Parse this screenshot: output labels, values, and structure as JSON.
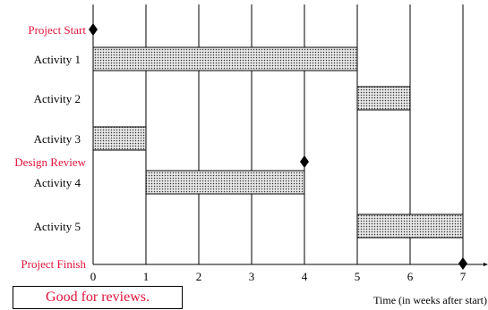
{
  "chart_data": {
    "type": "gantt",
    "xlabel": "Time (in weeks after start)",
    "xlim": [
      0,
      7
    ],
    "x_ticks": [
      "0",
      "1",
      "2",
      "3",
      "4",
      "5",
      "6",
      "7"
    ],
    "grid": "vertical",
    "activities": [
      {
        "label": "Activity 1",
        "start": 0,
        "end": 5
      },
      {
        "label": "Activity 2",
        "start": 5,
        "end": 6
      },
      {
        "label": "Activity 3",
        "start": 0,
        "end": 1
      },
      {
        "label": "Activity 4",
        "start": 1,
        "end": 4
      },
      {
        "label": "Activity 5",
        "start": 5,
        "end": 7
      }
    ],
    "milestones": [
      {
        "label": "Project Start",
        "time": 0
      },
      {
        "label": "Design Review",
        "time": 4
      },
      {
        "label": "Project Finish",
        "time": 7
      }
    ],
    "colors": {
      "bar_fill": "#e8e8e8",
      "bar_dots": "#333333",
      "milestone_label": "#e0143c",
      "milestone": "#000000"
    }
  },
  "note": {
    "text": "Good for reviews."
  }
}
